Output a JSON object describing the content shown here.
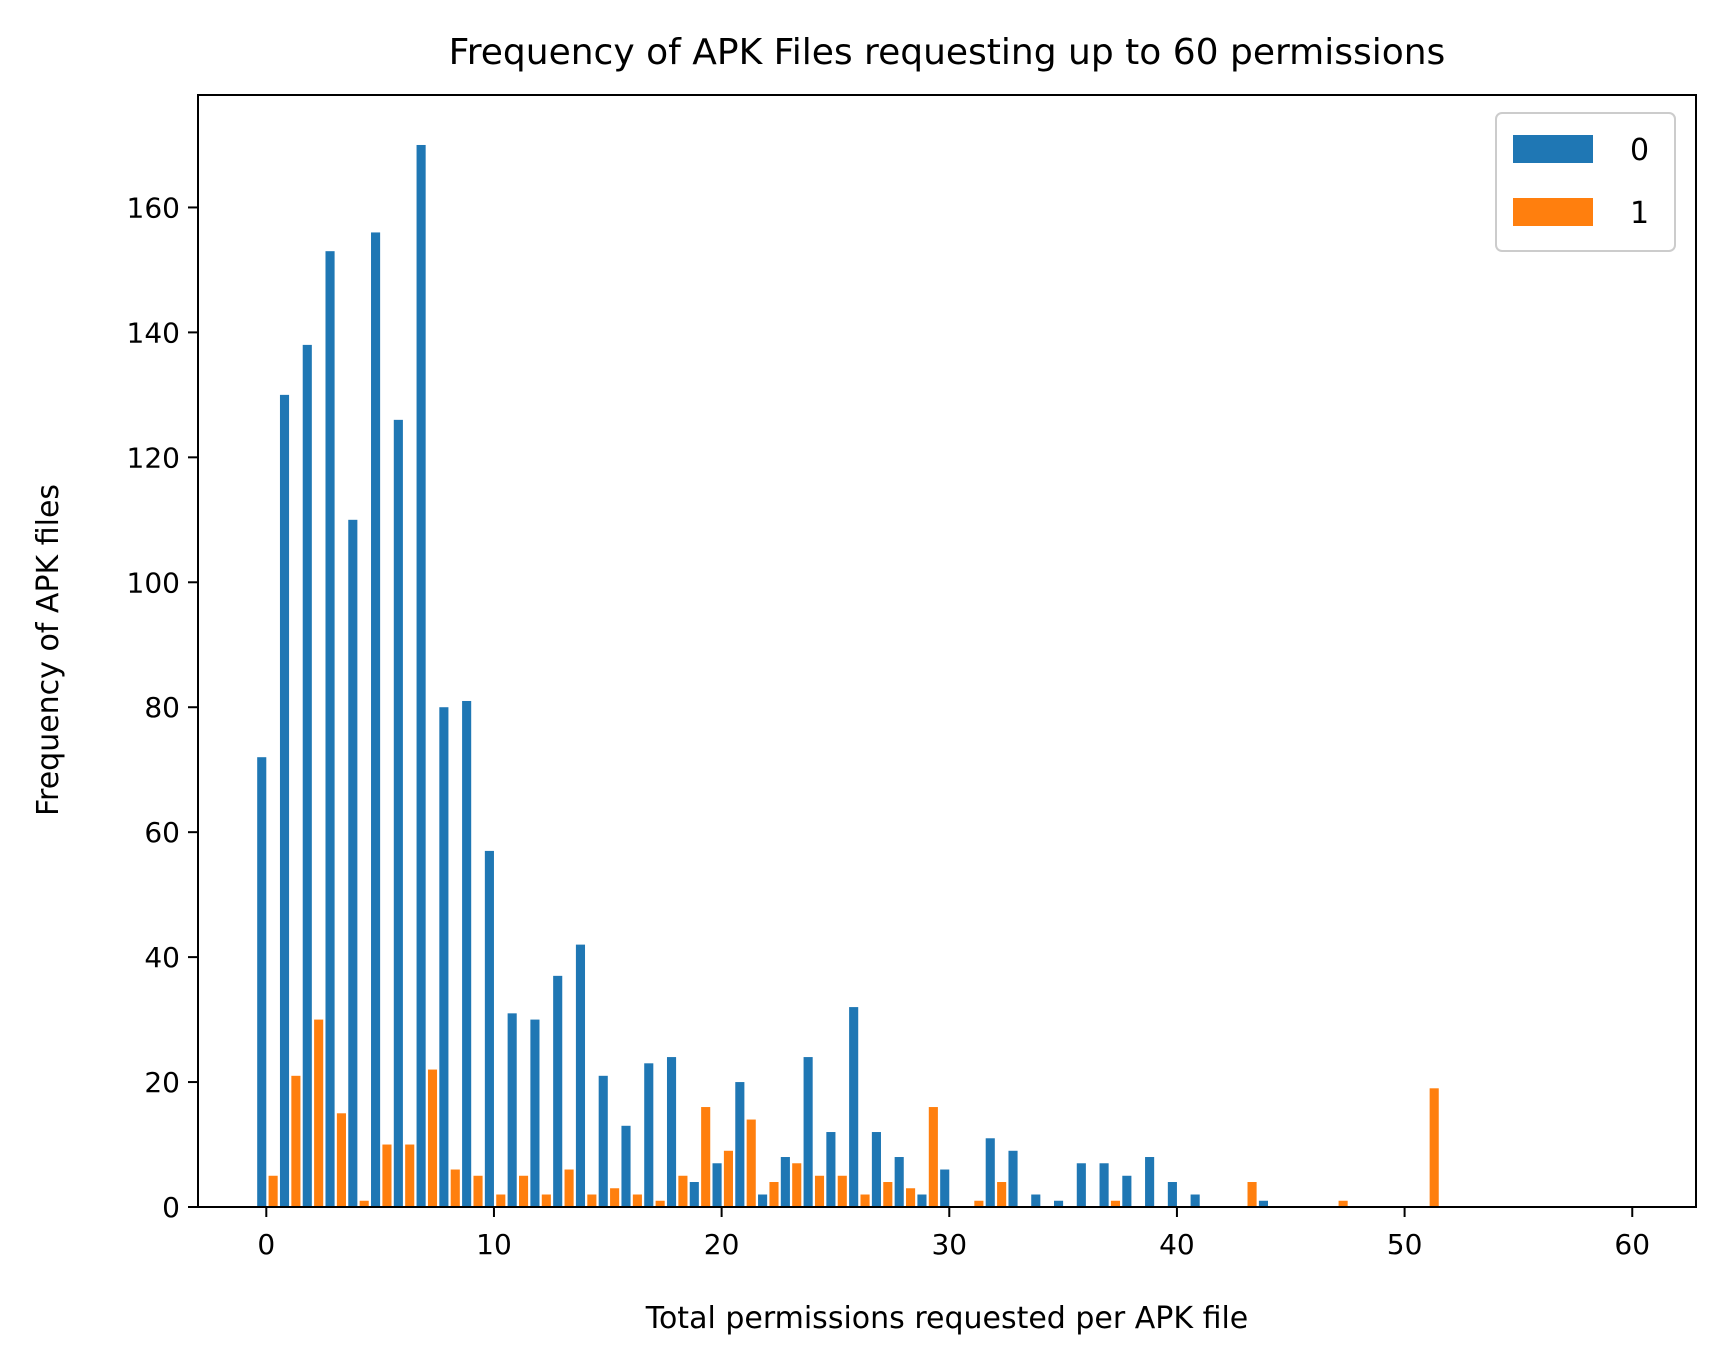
{
  "chart_data": {
    "type": "bar",
    "title": "Frequency of APK Files requesting up to 60 permissions",
    "xlabel": "Total permissions requested per APK file",
    "ylabel": "Frequency of APK files",
    "xlim": [
      -3,
      62.8
    ],
    "ylim": [
      0,
      178
    ],
    "xticks": [
      0,
      10,
      20,
      30,
      40,
      50,
      60
    ],
    "yticks": [
      0,
      20,
      40,
      60,
      80,
      100,
      120,
      140,
      160
    ],
    "legend_position": "top-right",
    "grid": false,
    "series": [
      {
        "name": "0",
        "color": "#1f77b4",
        "values": [
          72,
          130,
          138,
          153,
          110,
          156,
          126,
          170,
          80,
          81,
          57,
          31,
          30,
          37,
          42,
          21,
          13,
          23,
          24,
          4,
          7,
          20,
          2,
          8,
          24,
          12,
          32,
          12,
          8,
          2,
          6,
          0,
          11,
          9,
          2,
          1,
          7,
          7,
          5,
          8,
          4,
          2,
          0,
          0,
          1,
          0,
          0,
          0,
          0,
          0,
          0,
          0,
          0,
          0,
          0,
          0,
          0,
          0,
          0,
          0
        ]
      },
      {
        "name": "1",
        "color": "#ff7f0e",
        "values": [
          5,
          21,
          30,
          15,
          1,
          10,
          10,
          22,
          6,
          5,
          2,
          5,
          2,
          6,
          2,
          3,
          2,
          1,
          5,
          16,
          9,
          14,
          4,
          7,
          5,
          5,
          2,
          4,
          3,
          16,
          0,
          1,
          4,
          0,
          0,
          0,
          0,
          1,
          0,
          0,
          0,
          0,
          0,
          4,
          0,
          0,
          0,
          1,
          0,
          0,
          0,
          19,
          0,
          0,
          0,
          0,
          0,
          0,
          0,
          0
        ]
      }
    ]
  }
}
